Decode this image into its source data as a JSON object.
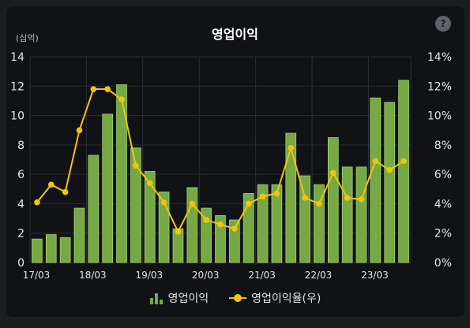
{
  "help_label": "?",
  "chart_data": {
    "type": "bar",
    "title": "영업이익",
    "unit_label": "(십억)",
    "x_ticks": [
      "17/03",
      "18/03",
      "19/03",
      "20/03",
      "21/03",
      "22/03",
      "23/03"
    ],
    "categories": [
      "17/03",
      "17/06",
      "17/09",
      "17/12",
      "18/03",
      "18/06",
      "18/09",
      "18/12",
      "19/03",
      "19/06",
      "19/09",
      "19/12",
      "20/03",
      "20/06",
      "20/09",
      "20/12",
      "21/03",
      "21/06",
      "21/09",
      "21/12",
      "22/03",
      "22/06",
      "22/09",
      "22/12",
      "23/03",
      "23/06",
      "23/09"
    ],
    "series": [
      {
        "name": "영업이익",
        "type": "bar",
        "axis": "left",
        "color": "#76a843",
        "values": [
          1.6,
          1.9,
          1.7,
          3.7,
          7.3,
          10.1,
          12.1,
          7.8,
          6.2,
          4.8,
          2.3,
          5.1,
          3.7,
          3.2,
          2.9,
          4.7,
          5.3,
          5.3,
          8.8,
          5.9,
          5.3,
          8.5,
          6.5,
          6.5,
          11.2,
          10.9,
          12.4
        ]
      },
      {
        "name": "영업이익율(우)",
        "type": "line",
        "axis": "right",
        "color": "#f1c40f",
        "values": [
          4.1,
          5.3,
          4.8,
          9.0,
          11.8,
          11.8,
          11.1,
          6.6,
          5.4,
          4.1,
          2.1,
          4.0,
          2.9,
          2.6,
          2.3,
          4.0,
          4.5,
          4.7,
          7.8,
          4.4,
          4.0,
          6.1,
          4.4,
          4.3,
          6.9,
          6.3,
          6.9
        ]
      }
    ],
    "y_left": {
      "min": 0,
      "max": 14,
      "step": 2,
      "ticks": [
        "0",
        "2",
        "4",
        "6",
        "8",
        "10",
        "12",
        "14"
      ]
    },
    "y_right": {
      "min": 0,
      "max": 14,
      "step": 2,
      "ticks": [
        "0%",
        "2%",
        "4%",
        "6%",
        "8%",
        "10%",
        "12%",
        "14%"
      ]
    },
    "grid": true,
    "legend_position": "bottom-center"
  }
}
